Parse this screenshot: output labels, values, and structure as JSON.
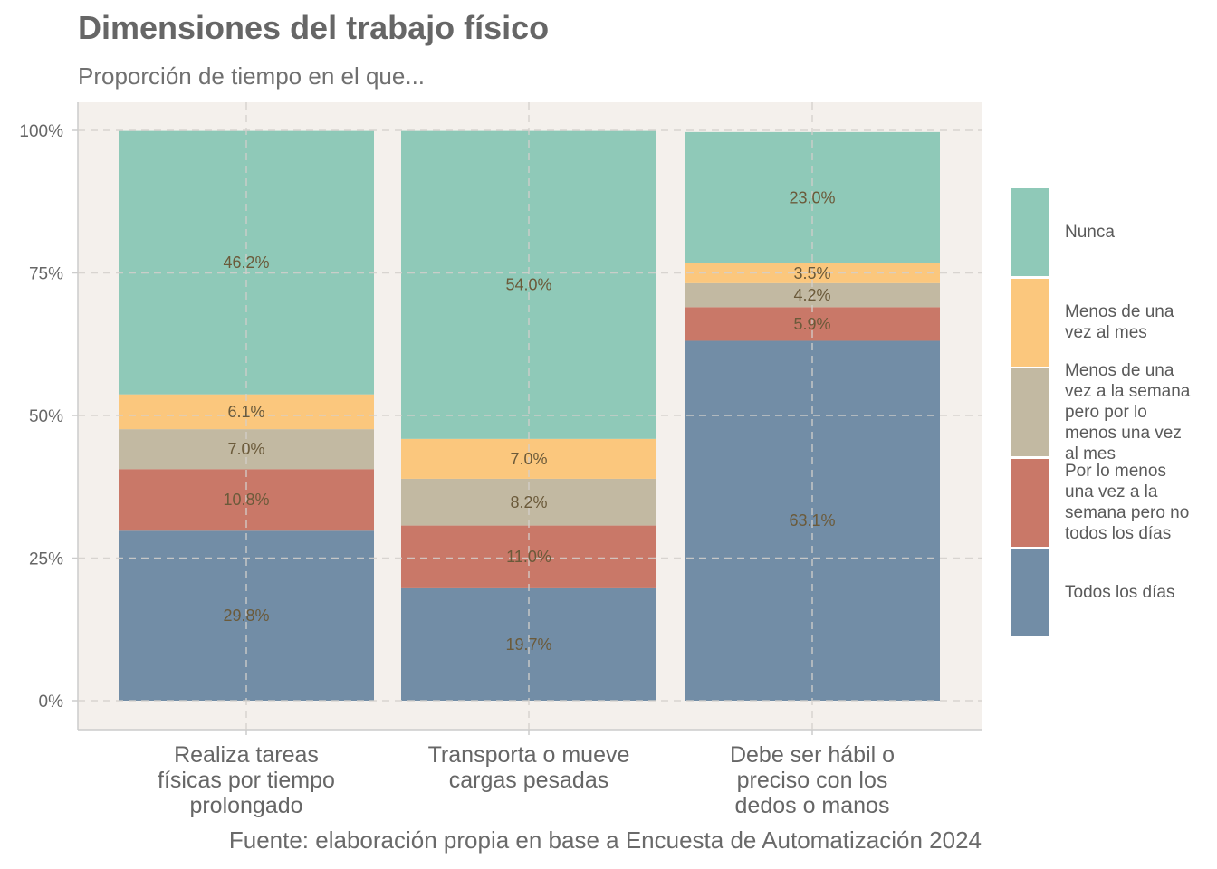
{
  "title": "Dimensiones del trabajo físico",
  "subtitle": "Proporción de tiempo en el que...",
  "caption": "Fuente: elaboración propia en base a Encuesta de Automatización 2024",
  "chart_data": {
    "type": "bar",
    "stacked": true,
    "orientation": "vertical",
    "categories": [
      [
        "Realiza tareas",
        "físicas por tiempo",
        "prolongado"
      ],
      [
        "Transporta o mueve",
        "cargas pesadas"
      ],
      [
        "Debe ser hábil o",
        "preciso con los",
        "dedos o manos"
      ]
    ],
    "series": [
      {
        "name": "Todos los días",
        "color": "#728da6",
        "values": [
          29.8,
          19.7,
          63.1
        ],
        "labels": [
          "29.8%",
          "19.7%",
          "63.1%"
        ]
      },
      {
        "name": "Por lo menos una vez a la semana pero no todos los días",
        "color": "#c97868",
        "values": [
          10.8,
          11.0,
          5.9
        ],
        "labels": [
          "10.8%",
          "11.0%",
          "5.9%"
        ]
      },
      {
        "name": "Menos de una vez a la semana pero por lo menos una vez al mes",
        "color": "#c2b9a2",
        "values": [
          7.0,
          8.2,
          4.2
        ],
        "labels": [
          "7.0%",
          "8.2%",
          "4.2%"
        ]
      },
      {
        "name": "Menos de una vez al mes",
        "color": "#fbc77d",
        "values": [
          6.1,
          7.0,
          3.5
        ],
        "labels": [
          "6.1%",
          "7.0%",
          "3.5%"
        ]
      },
      {
        "name": "Nunca",
        "color": "#8fc9b8",
        "values": [
          46.2,
          54.0,
          23.0
        ],
        "labels": [
          "46.2%",
          "54.0%",
          "23.0%"
        ]
      }
    ],
    "yticks": [
      0,
      25,
      50,
      75,
      100
    ],
    "ytick_labels": [
      "0%",
      "25%",
      "50%",
      "75%",
      "100%"
    ],
    "ylim": [
      0,
      100
    ],
    "grid": true,
    "legend_position": "right",
    "legend_order": [
      "Nunca",
      "Menos de una vez al mes",
      "Menos de una vez a la semana pero por lo menos una vez al mes",
      "Por lo menos una vez a la semana pero no todos los días",
      "Todos los días"
    ],
    "legend_labels": [
      [
        "Nunca"
      ],
      [
        "Menos de una",
        "vez al mes"
      ],
      [
        "Menos de una",
        "vez a la semana",
        "pero por lo",
        "menos una vez",
        "al mes"
      ],
      [
        "Por lo menos",
        "una vez a la",
        "semana pero no",
        "todos los días"
      ],
      [
        "Todos los días"
      ]
    ],
    "panel_background": "#f4f0ec",
    "label_color": "#6b5a3a"
  }
}
